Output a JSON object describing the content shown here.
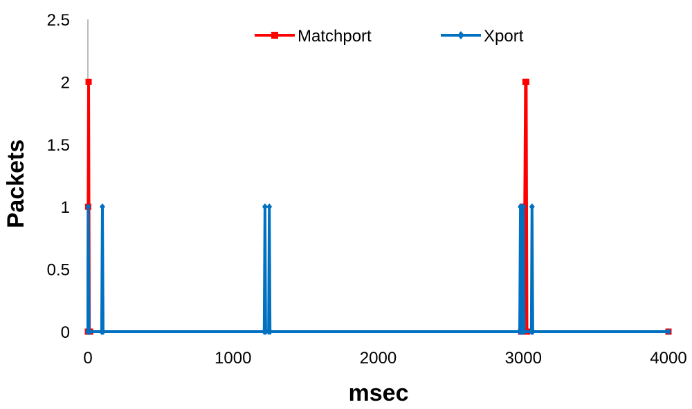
{
  "chart_data": {
    "type": "line",
    "title": "",
    "xlabel": "msec",
    "ylabel": "Packets",
    "xlim": [
      0,
      4000
    ],
    "ylim": [
      0,
      2.5
    ],
    "x_ticks": [
      "0",
      "1000",
      "2000",
      "3000",
      "4000"
    ],
    "y_ticks": [
      "0",
      "0.5",
      "1",
      "1.5",
      "2",
      "2.5"
    ],
    "grid": false,
    "legend_position": "top",
    "series": [
      {
        "name": "Matchport",
        "color": "#ff0000",
        "marker": "square",
        "x": [
          0,
          2,
          5,
          10,
          15,
          2985,
          2995,
          3005,
          3010,
          3015,
          3020,
          3025,
          4000
        ],
        "y": [
          0,
          1,
          2,
          0,
          0,
          0,
          1,
          0,
          1,
          2,
          2,
          0,
          0
        ]
      },
      {
        "name": "Xport",
        "color": "#0070c0",
        "marker": "diamond",
        "x": [
          0,
          2,
          8,
          12,
          95,
          100,
          105,
          1215,
          1220,
          1225,
          1245,
          1250,
          1255,
          2975,
          2980,
          2985,
          2995,
          3000,
          3005,
          3055,
          3060,
          3065,
          4000
        ],
        "y": [
          0,
          1,
          0,
          0,
          0,
          1,
          0,
          0,
          1,
          0,
          0,
          1,
          0,
          0,
          1,
          0,
          0,
          1,
          0,
          0,
          1,
          0,
          0
        ]
      }
    ]
  }
}
